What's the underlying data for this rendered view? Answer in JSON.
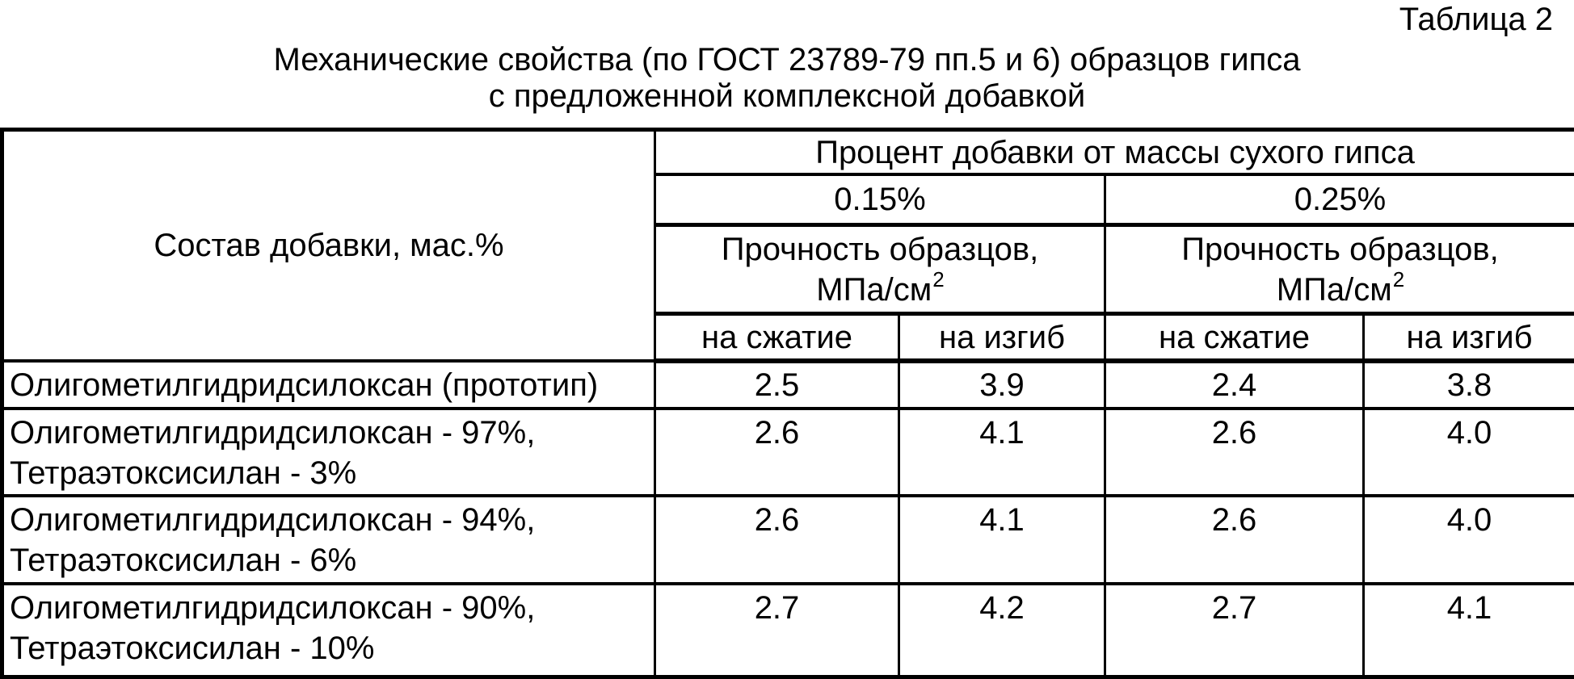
{
  "page": {
    "table_label": "Таблица 2",
    "caption_line1": "Механические свойства (по ГОСТ 23789-79 пп.5 и 6) образцов гипса",
    "caption_line2": "с предложенной комплексной добавкой"
  },
  "table": {
    "composition_header": "Состав добавки, мас.%",
    "percent_header": "Процент добавки от массы сухого гипса",
    "dose_levels": [
      "0.15%",
      "0.25%"
    ],
    "strength_line1": "Прочность образцов,",
    "strength_unit": "МПа/см",
    "strength_sup": "2",
    "subheaders": [
      "на сжатие",
      "на изгиб",
      "на сжатие",
      "на изгиб"
    ],
    "rows": [
      {
        "label": "Олигометилгидридсилоксан (прототип)",
        "values": [
          "2.5",
          "3.9",
          "2.4",
          "3.8"
        ]
      },
      {
        "label": "Олигометилгидридсилоксан - 97%,\nТетраэтоксисилан - 3%",
        "values": [
          "2.6",
          "4.1",
          "2.6",
          "4.0"
        ]
      },
      {
        "label": "Олигометилгидридсилоксан - 94%,\nТетраэтоксисилан - 6%",
        "values": [
          "2.6",
          "4.1",
          "2.6",
          "4.0"
        ]
      },
      {
        "label": "Олигометилгидридсилоксан - 90%,\nТетраэтоксисилан - 10%",
        "values": [
          "2.7",
          "4.2",
          "2.7",
          "4.1"
        ]
      }
    ]
  }
}
